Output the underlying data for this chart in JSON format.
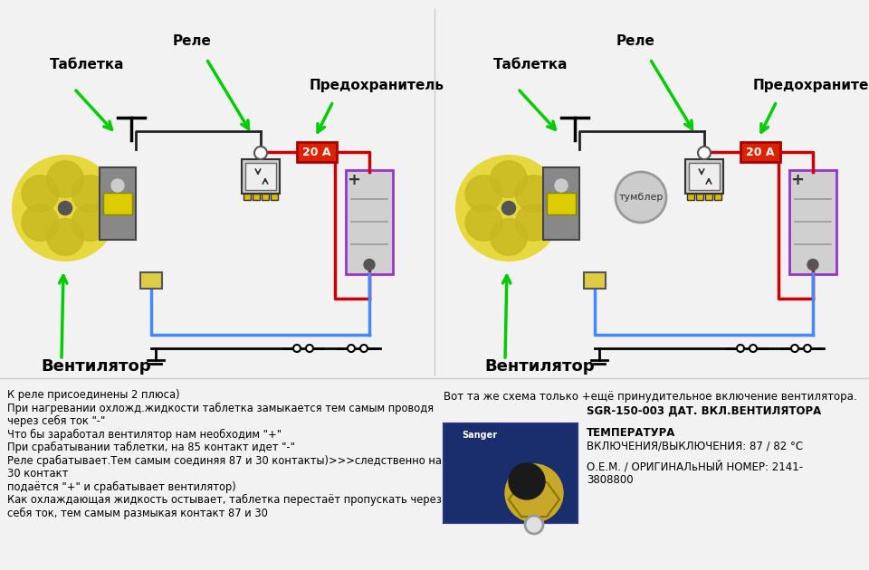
{
  "bg_color": "#f2f2f2",
  "left_labels": {
    "tabletka": "Таблетка",
    "rele": "Реле",
    "predohranitel": "Предохранитель",
    "ventilator": "Вентилятор",
    "20a": "20 А"
  },
  "right_labels": {
    "tabletka": "Таблетка",
    "rele": "Реле",
    "predohranitel": "Предохранитель",
    "ventilator": "Вентилятор",
    "20a": "20 А",
    "tumbler": "тумблер"
  },
  "bottom_left_text": [
    "К реле присоединены 2 плюса)",
    "При нагревании охложд.жидкости таблетка замыкается тем самым проводя",
    "через себя ток \"-\"",
    "Что бы заработал вентилятор нам необходим \"+\"",
    "При срабатывании таблетки, на 85 контакт идет \"-\"",
    "Реле срабатывает.Тем самым соединяя 87 и 30 контакты)>>>следственно на",
    "30 контакт",
    "подаётся \"+\" и срабатывает вентилятор)",
    "Как охлаждающая жидкость остывает, таблетка перестаёт пропускать через",
    "себя ток, тем самым размыкая контакт 87 и 30"
  ],
  "bottom_right_line1": "Вот та же схема только +ещё принудительное включение вентилятора.",
  "bottom_right_line2": "SGR-150-003 ДАТ. ВКЛ.ВЕНТИЛЯТОРА",
  "bottom_right_line3": "ТЕМПЕРАТУРА",
  "bottom_right_line4": "ВКЛЮЧЕНИЯ/ВЫКЛЮЧЕНИЯ: 87 / 82 °C",
  "bottom_right_line5": "О.Е.М. / ОРИГИНАЛьНЫЙ НОМЕР: 2141-",
  "bottom_right_line6": "3808800"
}
